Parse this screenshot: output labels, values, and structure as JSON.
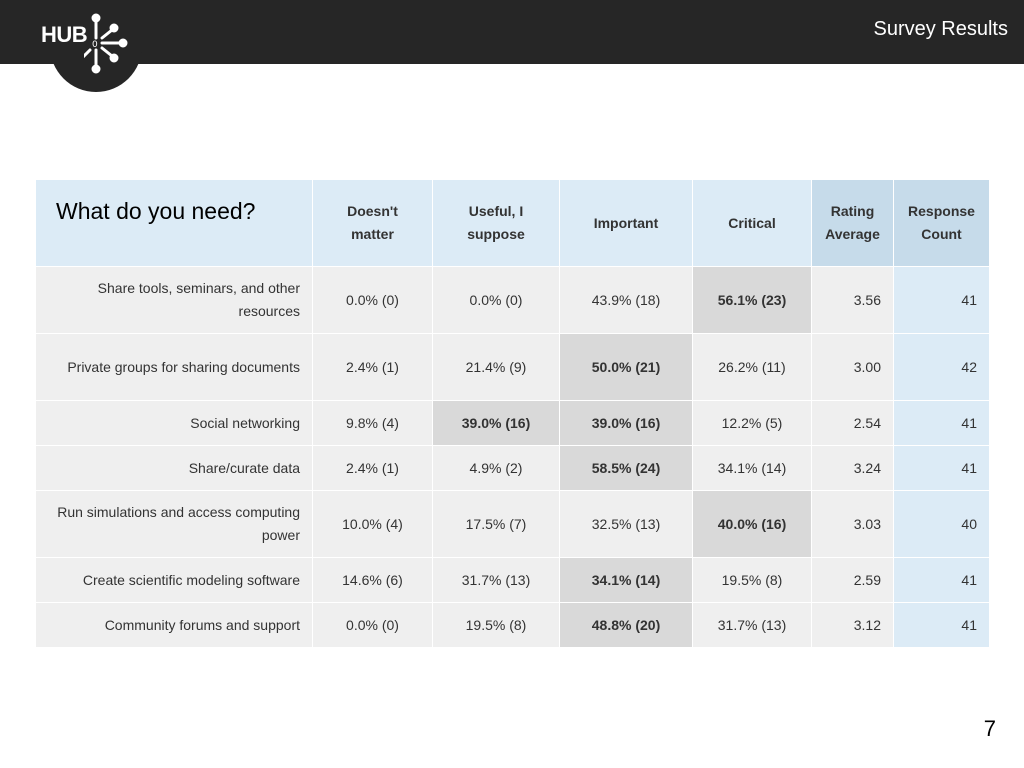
{
  "header": {
    "logo_text": "HUB",
    "title": "Survey Results"
  },
  "table": {
    "question": "What do you need?",
    "columns": [
      "Doesn't matter",
      "Useful, I suppose",
      "Important",
      "Critical",
      "Rating Average",
      "Response Count"
    ],
    "rows": [
      {
        "label": "Share tools, seminars, and other resources",
        "doesnt_matter": "0.0% (0)",
        "useful": "0.0% (0)",
        "important": "43.9% (18)",
        "critical": "56.1% (23)",
        "avg": "3.56",
        "count": "41"
      },
      {
        "label": "Private groups for sharing documents",
        "doesnt_matter": "2.4% (1)",
        "useful": "21.4% (9)",
        "important": "50.0% (21)",
        "critical": "26.2% (11)",
        "avg": "3.00",
        "count": "42"
      },
      {
        "label": "Social networking",
        "doesnt_matter": "9.8% (4)",
        "useful": "39.0% (16)",
        "important": "39.0% (16)",
        "critical": "12.2% (5)",
        "avg": "2.54",
        "count": "41"
      },
      {
        "label": "Share/curate data",
        "doesnt_matter": "2.4% (1)",
        "useful": "4.9% (2)",
        "important": "58.5% (24)",
        "critical": "34.1% (14)",
        "avg": "3.24",
        "count": "41"
      },
      {
        "label": "Run simulations and access computing power",
        "doesnt_matter": "10.0% (4)",
        "useful": "17.5% (7)",
        "important": "32.5% (13)",
        "critical": "40.0% (16)",
        "avg": "3.03",
        "count": "40"
      },
      {
        "label": "Create scientific modeling software",
        "doesnt_matter": "14.6% (6)",
        "useful": "31.7% (13)",
        "important": "34.1% (14)",
        "critical": "19.5% (8)",
        "avg": "2.59",
        "count": "41"
      },
      {
        "label": "Community forums and support",
        "doesnt_matter": "0.0% (0)",
        "useful": "19.5% (8)",
        "important": "48.8% (20)",
        "critical": "31.7% (13)",
        "avg": "3.12",
        "count": "41"
      }
    ]
  },
  "footer": {
    "page_number": "7"
  }
}
